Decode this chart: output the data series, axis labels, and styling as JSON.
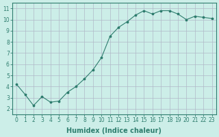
{
  "x": [
    0,
    1,
    2,
    3,
    4,
    5,
    6,
    7,
    8,
    9,
    10,
    11,
    12,
    13,
    14,
    15,
    16,
    17,
    18,
    19,
    20,
    21,
    22,
    23
  ],
  "y": [
    4.2,
    3.3,
    2.3,
    3.1,
    2.6,
    2.7,
    3.5,
    4.0,
    4.7,
    5.5,
    6.6,
    8.5,
    9.3,
    9.8,
    10.4,
    10.8,
    10.5,
    10.8,
    10.8,
    10.5,
    10.0,
    10.3,
    10.2,
    10.1
  ],
  "xlabel": "Humidex (Indice chaleur)",
  "ylabel": "",
  "xlim": [
    -0.5,
    23.5
  ],
  "ylim": [
    1.5,
    11.5
  ],
  "xticks": [
    0,
    1,
    2,
    3,
    4,
    5,
    6,
    7,
    8,
    9,
    10,
    11,
    12,
    13,
    14,
    15,
    16,
    17,
    18,
    19,
    20,
    21,
    22,
    23
  ],
  "yticks": [
    2,
    3,
    4,
    5,
    6,
    7,
    8,
    9,
    10,
    11
  ],
  "line_color": "#2e7d6e",
  "marker": "*",
  "bg_color": "#cceee8",
  "grid_color": "#b0b8c8",
  "axis_color": "#2e7d6e",
  "tick_color": "#2e7d6e",
  "label_color": "#2e7d6e",
  "title_fontsize": 7,
  "label_fontsize": 7,
  "tick_fontsize": 5.5
}
